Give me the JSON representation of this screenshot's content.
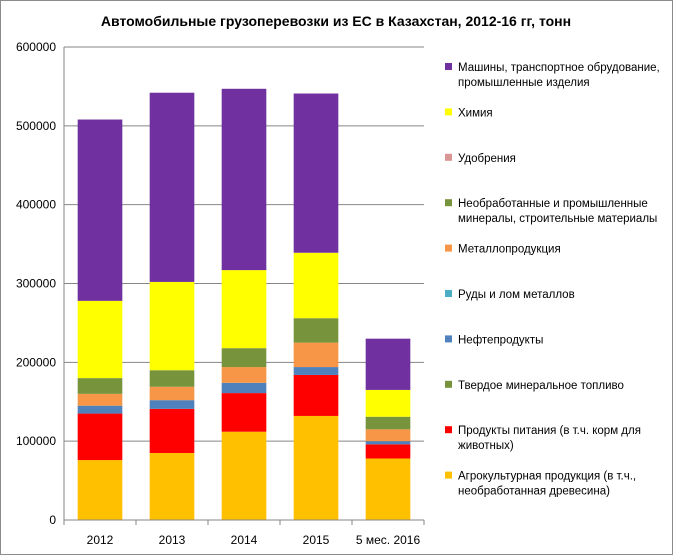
{
  "chart_data": {
    "type": "bar",
    "stacked": true,
    "title": "Автомобильные грузоперевозки из ЕС в Казахстан, 2012-16 гг, тонн",
    "xlabel": "",
    "ylabel": "",
    "ylim": [
      0,
      600000
    ],
    "yticks": [
      "0",
      "100000",
      "200000",
      "300000",
      "400000",
      "500000",
      "600000"
    ],
    "grid": true,
    "legend_position": "right",
    "categories": [
      "2012",
      "2013",
      "2014",
      "2015",
      "5 мес. 2016"
    ],
    "series": [
      {
        "name": "Агрокультурная продукция (в т.ч., необработанная древесина)",
        "color": "#FFC000",
        "values": [
          76000,
          85000,
          112000,
          132000,
          78000
        ]
      },
      {
        "name": "Продукты питания (в т.ч. корм для животных)",
        "color": "#FF0000",
        "values": [
          59000,
          56000,
          49000,
          52000,
          18000
        ]
      },
      {
        "name": "Твердое  минеральное топливо",
        "color": "#77933C",
        "values": [
          0,
          0,
          0,
          0,
          0
        ]
      },
      {
        "name": "Нефтепродукты",
        "color": "#4F81BD",
        "values": [
          10000,
          11000,
          13000,
          10000,
          4000
        ]
      },
      {
        "name": "Руды и лом металлов",
        "color": "#4BACC6",
        "values": [
          0,
          0,
          0,
          0,
          0
        ]
      },
      {
        "name": "Металлопродукция",
        "color": "#F79646",
        "values": [
          15000,
          17000,
          20000,
          31000,
          15000
        ]
      },
      {
        "name": "Необработанные и промышленные минералы, строительные материалы",
        "color": "#77933C",
        "values": [
          20000,
          21000,
          24000,
          31000,
          16000
        ]
      },
      {
        "name": "Удобрения",
        "color": "#D99694",
        "values": [
          0,
          0,
          0,
          0,
          0
        ]
      },
      {
        "name": "Химия",
        "color": "#FFFF00",
        "values": [
          98000,
          112000,
          99000,
          83000,
          34000
        ]
      },
      {
        "name": "Машины, транспортное обрудование, промышленные изделия",
        "color": "#7030A0",
        "values": [
          230000,
          240000,
          230000,
          202000,
          65000
        ]
      }
    ]
  }
}
